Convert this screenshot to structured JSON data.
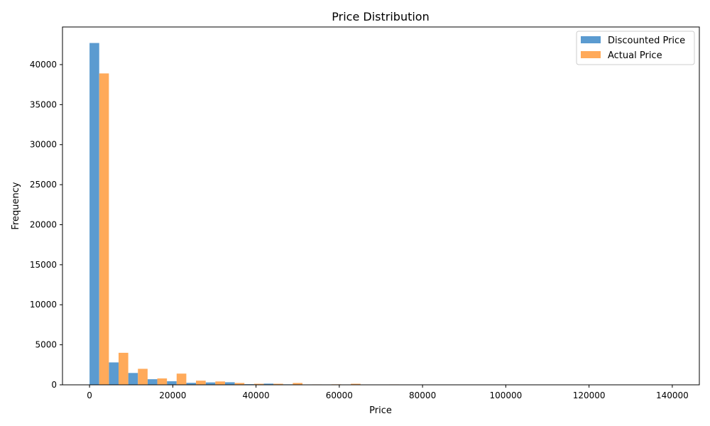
{
  "chart_data": {
    "type": "bar",
    "title": "Price Distribution",
    "xlabel": "Price",
    "ylabel": "Frequency",
    "xlim": [
      -6500,
      146500
    ],
    "ylim": [
      0,
      44700
    ],
    "x_ticks": [
      0,
      20000,
      40000,
      60000,
      80000,
      100000,
      120000,
      140000
    ],
    "y_ticks": [
      0,
      5000,
      10000,
      15000,
      20000,
      25000,
      30000,
      35000,
      40000
    ],
    "legend_position": "top-right",
    "grid": false,
    "bin_width": 4650,
    "bin_starts": [
      0,
      4650,
      9300,
      13950,
      18600,
      23250,
      27900,
      32550,
      37200,
      41850,
      46500,
      51150,
      55800,
      60450,
      65100,
      69750,
      74400,
      79050,
      83700,
      88350,
      93000,
      97650,
      102300,
      106950,
      111600,
      116250,
      120900,
      125550,
      130200,
      134850
    ],
    "series": [
      {
        "name": "Discounted Price",
        "color": "#5b9bd0",
        "values": [
          42700,
          2800,
          1480,
          700,
          450,
          250,
          300,
          320,
          80,
          150,
          60,
          40,
          30,
          20,
          15,
          10,
          10,
          5,
          0,
          0,
          0,
          0,
          0,
          0,
          0,
          0,
          0,
          0,
          0,
          0
        ]
      },
      {
        "name": "Actual Price",
        "color": "#ffaa5a",
        "values": [
          38900,
          4000,
          2000,
          800,
          1400,
          520,
          420,
          230,
          130,
          130,
          230,
          50,
          60,
          130,
          40,
          50,
          40,
          40,
          20,
          10,
          5,
          5,
          0,
          0,
          0,
          0,
          0,
          0,
          0,
          40
        ]
      }
    ]
  }
}
